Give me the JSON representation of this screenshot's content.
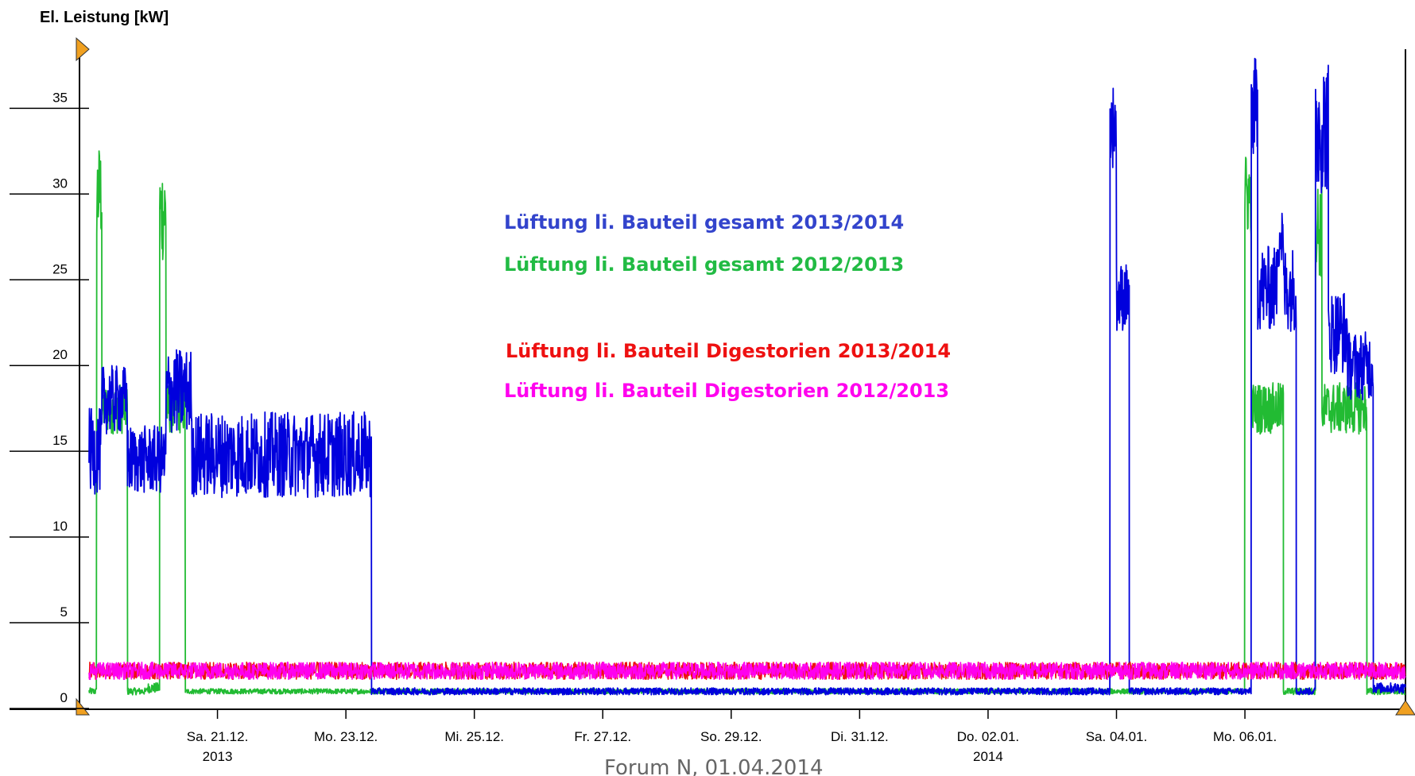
{
  "chart_data": {
    "type": "line",
    "ylabel": "El. Leistung [kW]",
    "ylim": [
      0,
      39
    ],
    "yticks": [
      "0",
      "5",
      "10",
      "15",
      "20",
      "25",
      "30",
      "35"
    ],
    "xlim_days": [
      0,
      20.5
    ],
    "xticks": [
      {
        "day": 2,
        "label": "Sa. 21.12.",
        "sub": "2013",
        "color": "#000000"
      },
      {
        "day": 4,
        "label": "Mo. 23.12.",
        "sub": "",
        "color": "#000000"
      },
      {
        "day": 6,
        "label": "Mi. 25.12.",
        "sub": "",
        "color": "#000000"
      },
      {
        "day": 8,
        "label": "Fr. 27.12.",
        "sub": "",
        "color": "#000000"
      },
      {
        "day": 10,
        "label": "So. 29.12.",
        "sub": "",
        "color": "#ff0000"
      },
      {
        "day": 12,
        "label": "Di. 31.12.",
        "sub": "",
        "color": "#000000"
      },
      {
        "day": 14,
        "label": "Do. 02.01.",
        "sub": "2014",
        "color": "#000000"
      },
      {
        "day": 16,
        "label": "Sa. 04.01.",
        "sub": "",
        "color": "#000000"
      },
      {
        "day": 18,
        "label": "Mo. 06.01.",
        "sub": "",
        "color": "#000000"
      }
    ],
    "series": [
      {
        "name": "Lüftung li. Bauteil gesamt 2013/2014",
        "color": "#0000dd",
        "segments": [
          {
            "from": 0.0,
            "to": 0.2,
            "level": 15.0,
            "noise": 2.5
          },
          {
            "from": 0.2,
            "to": 0.6,
            "level": 18.0,
            "noise": 2.0
          },
          {
            "from": 0.6,
            "to": 1.2,
            "level": 14.5,
            "noise": 2.0
          },
          {
            "from": 1.2,
            "to": 1.6,
            "level": 18.5,
            "noise": 2.5
          },
          {
            "from": 1.6,
            "to": 4.4,
            "level": 14.8,
            "noise": 2.5
          },
          {
            "from": 4.4,
            "to": 15.9,
            "level": 1.0,
            "noise": 0.2
          },
          {
            "from": 15.9,
            "to": 16.0,
            "level": 34.0,
            "noise": 2.5
          },
          {
            "from": 16.0,
            "to": 16.2,
            "level": 24.0,
            "noise": 2.0
          },
          {
            "from": 16.2,
            "to": 18.1,
            "level": 1.0,
            "noise": 0.2
          },
          {
            "from": 18.1,
            "to": 18.2,
            "level": 35.0,
            "noise": 3.0
          },
          {
            "from": 18.2,
            "to": 18.5,
            "level": 24.5,
            "noise": 2.5
          },
          {
            "from": 18.5,
            "to": 18.6,
            "level": 27.5,
            "noise": 2.0
          },
          {
            "from": 18.6,
            "to": 18.8,
            "level": 24.5,
            "noise": 2.5
          },
          {
            "from": 18.8,
            "to": 19.1,
            "level": 1.0,
            "noise": 0.2
          },
          {
            "from": 19.1,
            "to": 19.3,
            "level": 34.0,
            "noise": 4.0
          },
          {
            "from": 19.3,
            "to": 19.6,
            "level": 22.0,
            "noise": 2.5
          },
          {
            "from": 19.6,
            "to": 20.0,
            "level": 20.0,
            "noise": 2.0
          },
          {
            "from": 20.0,
            "to": 20.5,
            "level": 1.2,
            "noise": 0.3
          }
        ]
      },
      {
        "name": "Lüftung li. Bauteil gesamt 2012/2013",
        "color": "#22bb33",
        "segments": [
          {
            "from": 0.0,
            "to": 0.12,
            "level": 1.0,
            "noise": 0.2
          },
          {
            "from": 0.12,
            "to": 0.2,
            "level": 30.0,
            "noise": 3.0
          },
          {
            "from": 0.2,
            "to": 0.6,
            "level": 17.5,
            "noise": 1.5
          },
          {
            "from": 0.6,
            "to": 0.9,
            "level": 1.0,
            "noise": 0.2
          },
          {
            "from": 0.9,
            "to": 1.1,
            "level": 1.2,
            "noise": 0.3
          },
          {
            "from": 1.1,
            "to": 1.2,
            "level": 29.0,
            "noise": 3.0
          },
          {
            "from": 1.2,
            "to": 1.5,
            "level": 17.5,
            "noise": 1.5
          },
          {
            "from": 1.5,
            "to": 18.0,
            "level": 1.0,
            "noise": 0.15
          },
          {
            "from": 18.0,
            "to": 18.1,
            "level": 30.0,
            "noise": 2.5
          },
          {
            "from": 18.1,
            "to": 18.6,
            "level": 17.5,
            "noise": 1.5
          },
          {
            "from": 18.6,
            "to": 19.1,
            "level": 1.0,
            "noise": 0.2
          },
          {
            "from": 19.1,
            "to": 19.2,
            "level": 28.0,
            "noise": 3.0
          },
          {
            "from": 19.2,
            "to": 19.9,
            "level": 17.5,
            "noise": 1.5
          },
          {
            "from": 19.9,
            "to": 20.5,
            "level": 1.0,
            "noise": 0.2
          }
        ]
      },
      {
        "name": "Lüftung li. Bauteil Digestorien 2013/2014",
        "color": "#ee1111",
        "segments": [
          {
            "from": 0.0,
            "to": 20.5,
            "level": 2.2,
            "noise": 0.5
          }
        ]
      },
      {
        "name": "Lüftung li. Bauteil Digestorien 2012/2013",
        "color": "#ff00ee",
        "segments": [
          {
            "from": 0.0,
            "to": 20.5,
            "level": 2.2,
            "noise": 0.5
          }
        ]
      }
    ]
  },
  "legend": {
    "item1": "Lüftung li. Bauteil gesamt 2013/2014",
    "item2": "Lüftung li. Bauteil gesamt 2012/2013",
    "item3": "Lüftung li. Bauteil Digestorien 2013/2014",
    "item4": "Lüftung li. Bauteil Digestorien 2012/2013",
    "color1": "#3344cc",
    "color2": "#22bb44",
    "color3": "#ee1111",
    "color4": "#ff00ee"
  },
  "footer": "Forum N, 01.04.2014"
}
